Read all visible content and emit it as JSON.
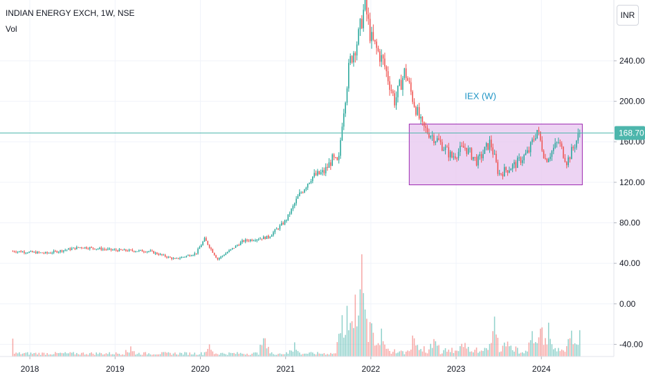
{
  "header": {
    "title": "INDIAN ENERGY EXCH, 1W, NSE",
    "volume_label": "Vol",
    "currency": "INR"
  },
  "chart_data": {
    "type": "candlestick",
    "title": "INDIAN ENERGY EXCH, 1W, NSE",
    "ylim": [
      -52,
      300
    ],
    "y_ticks": [
      -40,
      0,
      40,
      80,
      120,
      160,
      200,
      240
    ],
    "y_tick_labels": [
      "-40.00",
      "0.00",
      "40.00",
      "80.00",
      "120.00",
      "160.00",
      "200.00",
      "240.00"
    ],
    "xlim": [
      2017.65,
      2024.85
    ],
    "x_ticks": [
      2018,
      2019,
      2020,
      2021,
      2022,
      2023,
      2024
    ],
    "x_tick_labels": [
      "2018",
      "2019",
      "2020",
      "2021",
      "2022",
      "2023",
      "2024"
    ],
    "last_price": 168.7,
    "last_price_label": "168.70",
    "up_color": "#26a69a",
    "down_color": "#ef5350",
    "price_line_color": "#4db6ac",
    "price_path": [
      [
        2017.8,
        52
      ],
      [
        2018.2,
        50
      ],
      [
        2018.6,
        56
      ],
      [
        2019.0,
        53
      ],
      [
        2019.4,
        52
      ],
      [
        2019.7,
        44
      ],
      [
        2019.95,
        50
      ],
      [
        2020.05,
        64
      ],
      [
        2020.2,
        44
      ],
      [
        2020.5,
        62
      ],
      [
        2020.8,
        66
      ],
      [
        2021.0,
        82
      ],
      [
        2021.15,
        106
      ],
      [
        2021.3,
        125
      ],
      [
        2021.45,
        130
      ],
      [
        2021.55,
        143
      ],
      [
        2021.62,
        138
      ],
      [
        2021.66,
        178
      ],
      [
        2021.75,
        238
      ],
      [
        2021.85,
        262
      ],
      [
        2021.93,
        296
      ],
      [
        2022.0,
        262
      ],
      [
        2022.15,
        238
      ],
      [
        2022.28,
        200
      ],
      [
        2022.4,
        230
      ],
      [
        2022.5,
        200
      ],
      [
        2022.6,
        175
      ],
      [
        2022.8,
        160
      ],
      [
        2022.95,
        145
      ],
      [
        2023.1,
        155
      ],
      [
        2023.25,
        140
      ],
      [
        2023.4,
        160
      ],
      [
        2023.5,
        128
      ],
      [
        2023.7,
        138
      ],
      [
        2023.85,
        150
      ],
      [
        2023.95,
        172
      ],
      [
        2024.05,
        142
      ],
      [
        2024.2,
        160
      ],
      [
        2024.3,
        140
      ],
      [
        2024.45,
        168.7
      ]
    ],
    "volume_series": {
      "name": "Vol",
      "baseline": -52,
      "spikes": [
        [
          2017.75,
          31
        ],
        [
          2019.18,
          10
        ],
        [
          2020.1,
          12
        ],
        [
          2020.75,
          18
        ],
        [
          2021.1,
          14
        ],
        [
          2021.66,
          38
        ],
        [
          2021.72,
          48
        ],
        [
          2021.82,
          58
        ],
        [
          2021.9,
          100
        ],
        [
          2022.0,
          32
        ],
        [
          2022.12,
          22
        ],
        [
          2022.5,
          16
        ],
        [
          2022.75,
          12
        ],
        [
          2023.1,
          12
        ],
        [
          2023.45,
          36
        ],
        [
          2023.6,
          14
        ],
        [
          2023.9,
          22
        ],
        [
          2024.0,
          25
        ],
        [
          2024.08,
          32
        ],
        [
          2024.35,
          20
        ],
        [
          2024.45,
          22
        ]
      ]
    },
    "annotations": [
      {
        "text": "IEX (W)",
        "x": 2023.1,
        "y": 202,
        "color": "#2196c6"
      },
      {
        "shape": "rectangle",
        "x0": 2022.45,
        "x1": 2024.48,
        "y0": 117.5,
        "y1": 177.5,
        "fill": "#e7c6ef",
        "stroke": "#9c27b0"
      }
    ]
  }
}
